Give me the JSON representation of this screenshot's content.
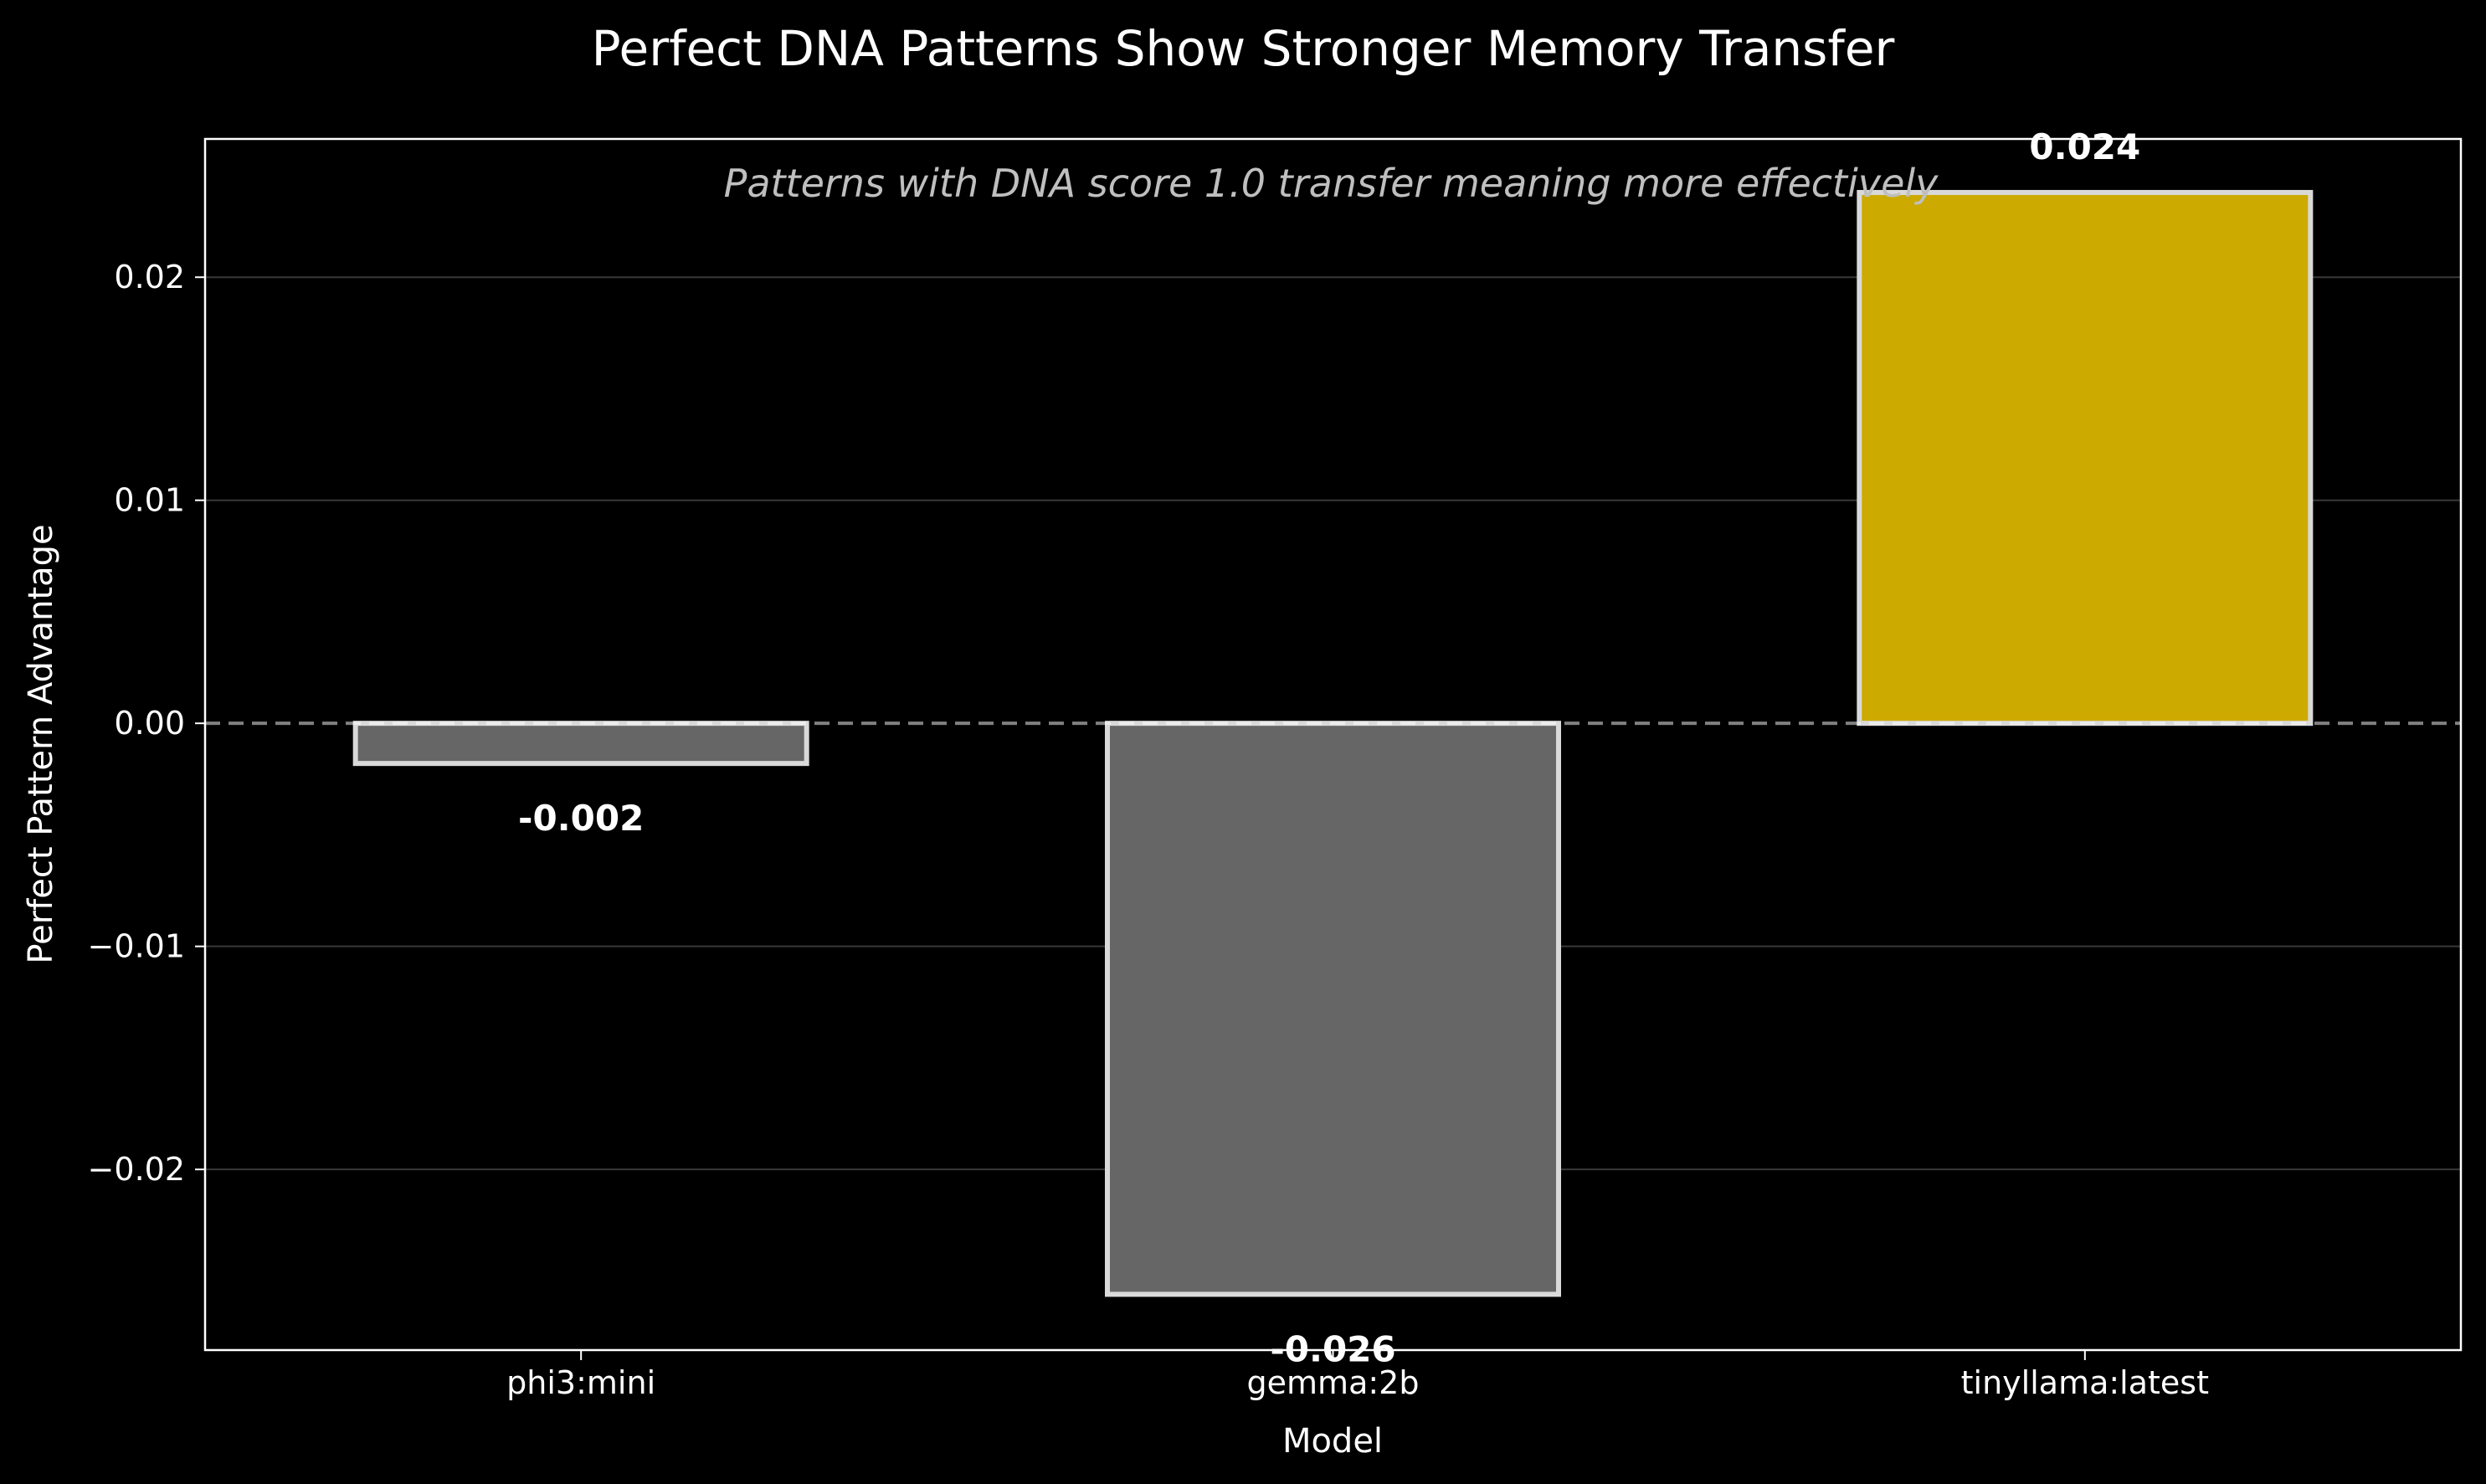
{
  "chart_data": {
    "type": "bar",
    "title": "Perfect DNA Patterns Show Stronger Memory Transfer",
    "subtitle": "Patterns with DNA score 1.0 transfer meaning more effectively",
    "xlabel": "Model",
    "ylabel": "Perfect Pattern Advantage",
    "categories": [
      "phi3:mini",
      "gemma:2b",
      "tinyllama:latest"
    ],
    "values": [
      -0.0018,
      -0.0256,
      0.0238
    ],
    "value_labels": [
      "-0.002",
      "-0.026",
      "0.024"
    ],
    "bar_colors": [
      "#666666",
      "#666666",
      "#ccaa00"
    ],
    "bar_edge_color": "#d9d9d9",
    "ylim": [
      -0.0281,
      0.0262
    ],
    "yticks": [
      -0.02,
      -0.01,
      0.0,
      0.01,
      0.02
    ],
    "ytick_labels": [
      "−0.02",
      "−0.01",
      "0.00",
      "0.01",
      "0.02"
    ],
    "grid": true,
    "zero_line": "dashed",
    "background": "#000000",
    "legend": "none"
  }
}
